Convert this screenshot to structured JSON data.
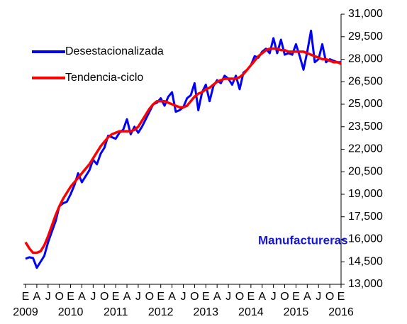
{
  "chart_data": {
    "type": "line",
    "annotation": "Manufactureras",
    "categories": [
      "E",
      null,
      null,
      "A",
      null,
      null,
      "J",
      null,
      null,
      "O",
      null,
      null,
      "E",
      null,
      null,
      "A",
      null,
      null,
      "J",
      null,
      null,
      "O",
      null,
      null,
      "E",
      null,
      null,
      "A",
      null,
      null,
      "J",
      null,
      null,
      "O",
      null,
      null,
      "E",
      null,
      null,
      "A",
      null,
      null,
      "J",
      null,
      null,
      "O",
      null,
      null,
      "E",
      null,
      null,
      "A",
      null,
      null,
      "J",
      null,
      null,
      "O",
      null,
      null,
      "E",
      null,
      null,
      "A",
      null,
      null,
      "J",
      null,
      null,
      "O",
      null,
      null,
      "E",
      null,
      null,
      "A",
      null,
      null,
      "J",
      null,
      null,
      "O",
      null,
      null,
      "E"
    ],
    "year_labels": [
      "2009",
      "2010",
      "2011",
      "2012",
      "2013",
      "2014",
      "2015",
      "2016"
    ],
    "series": [
      {
        "name": "Desestacionalizada",
        "color": "#0000ff",
        "values": [
          14700,
          14800,
          14750,
          14100,
          14500,
          14900,
          15800,
          16500,
          17200,
          18200,
          18400,
          18500,
          19000,
          19600,
          20400,
          19800,
          20200,
          20600,
          21300,
          21000,
          21700,
          22100,
          22900,
          22800,
          22700,
          23100,
          23300,
          24000,
          23000,
          23500,
          23100,
          23500,
          24000,
          24500,
          25000,
          25100,
          25400,
          24900,
          25500,
          25800,
          24500,
          24600,
          24800,
          25400,
          25600,
          26400,
          24600,
          25800,
          26300,
          25200,
          26200,
          26600,
          26400,
          26900,
          26700,
          26300,
          26900,
          26000,
          27100,
          27300,
          27600,
          28200,
          28100,
          28500,
          28700,
          28400,
          29400,
          28400,
          29300,
          28300,
          28400,
          28300,
          29000,
          28200,
          27300,
          28500,
          29900,
          27800,
          28000,
          29000,
          27800,
          28000,
          27900,
          27800,
          27800
        ]
      },
      {
        "name": "Tendencia-ciclo",
        "color": "#ff0000",
        "values": [
          15800,
          15400,
          15100,
          15100,
          15200,
          15600,
          16200,
          16900,
          17600,
          18200,
          18700,
          19100,
          19500,
          19800,
          20100,
          20400,
          20700,
          21000,
          21400,
          21800,
          22200,
          22500,
          22800,
          23000,
          23100,
          23200,
          23200,
          23200,
          23200,
          23300,
          23500,
          23900,
          24300,
          24700,
          25000,
          25200,
          25200,
          25200,
          25100,
          25000,
          24900,
          24800,
          24800,
          24900,
          25200,
          25500,
          25700,
          25800,
          26000,
          26100,
          26300,
          26500,
          26600,
          26700,
          26700,
          26700,
          26700,
          26800,
          27000,
          27300,
          27600,
          27900,
          28200,
          28400,
          28600,
          28700,
          28700,
          28700,
          28600,
          28600,
          28500,
          28500,
          28500,
          28500,
          28500,
          28400,
          28300,
          28200,
          28100,
          28000,
          28000,
          27900,
          27800,
          27800,
          27700
        ]
      }
    ],
    "ylim": [
      13000,
      31000
    ],
    "yticks": [
      {
        "value": 13000,
        "label": "13,000"
      },
      {
        "value": 14500,
        "label": "14,500"
      },
      {
        "value": 16000,
        "label": "16,000"
      },
      {
        "value": 17500,
        "label": "17,500"
      },
      {
        "value": 19000,
        "label": "19,000"
      },
      {
        "value": 20500,
        "label": "20,500"
      },
      {
        "value": 22000,
        "label": "22,000"
      },
      {
        "value": 23500,
        "label": "23,500"
      },
      {
        "value": 25000,
        "label": "25,000"
      },
      {
        "value": 26500,
        "label": "26,500"
      },
      {
        "value": 28000,
        "label": "28,000"
      },
      {
        "value": 29500,
        "label": "29,500"
      },
      {
        "value": 31000,
        "label": "31,000"
      }
    ],
    "grid": false
  }
}
